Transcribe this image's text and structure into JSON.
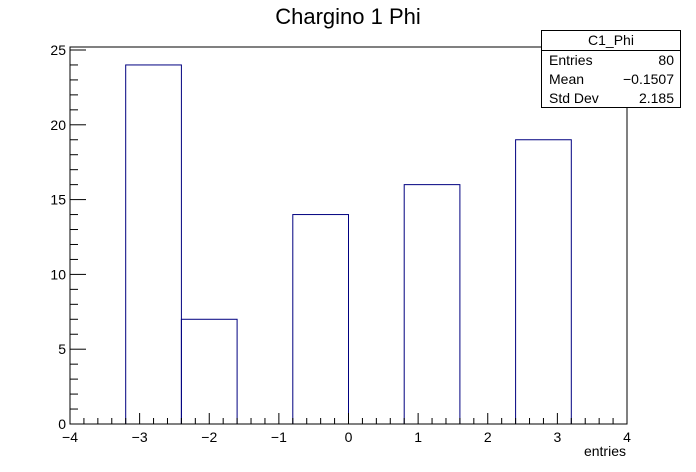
{
  "chart_data": {
    "type": "bar",
    "title": "Chargino 1 Phi",
    "xlabel": "entries",
    "ylabel": "",
    "xlim": [
      -4,
      4
    ],
    "ylim": [
      0,
      25.2
    ],
    "x_ticks": [
      -4,
      -3,
      -2,
      -1,
      0,
      1,
      2,
      3,
      4
    ],
    "x_tick_labels": [
      "−4",
      "−3",
      "−2",
      "−1",
      "0",
      "1",
      "2",
      "3",
      "4"
    ],
    "y_ticks": [
      0,
      5,
      10,
      15,
      20,
      25
    ],
    "y_tick_labels": [
      "0",
      "5",
      "10",
      "15",
      "20",
      "25"
    ],
    "bin_width": 0.8,
    "bins": [
      {
        "low": -3.2,
        "high": -2.4,
        "value": 24
      },
      {
        "low": -2.4,
        "high": -1.6,
        "value": 7
      },
      {
        "low": -1.6,
        "high": -0.8,
        "value": 0
      },
      {
        "low": -0.8,
        "high": 0.0,
        "value": 14
      },
      {
        "low": 0.0,
        "high": 0.8,
        "value": 0
      },
      {
        "low": 0.8,
        "high": 1.6,
        "value": 16
      },
      {
        "low": 1.6,
        "high": 2.4,
        "value": 0
      },
      {
        "low": 2.4,
        "high": 3.2,
        "value": 19
      }
    ],
    "line_color": "#000080",
    "grid": false,
    "legend_position": "top-right"
  },
  "stats": {
    "name": "C1_Phi",
    "entries_label": "Entries",
    "entries_value": "80",
    "mean_label": "Mean",
    "mean_value": "−0.1507",
    "stddev_label": "Std Dev",
    "stddev_value": "2.185"
  }
}
